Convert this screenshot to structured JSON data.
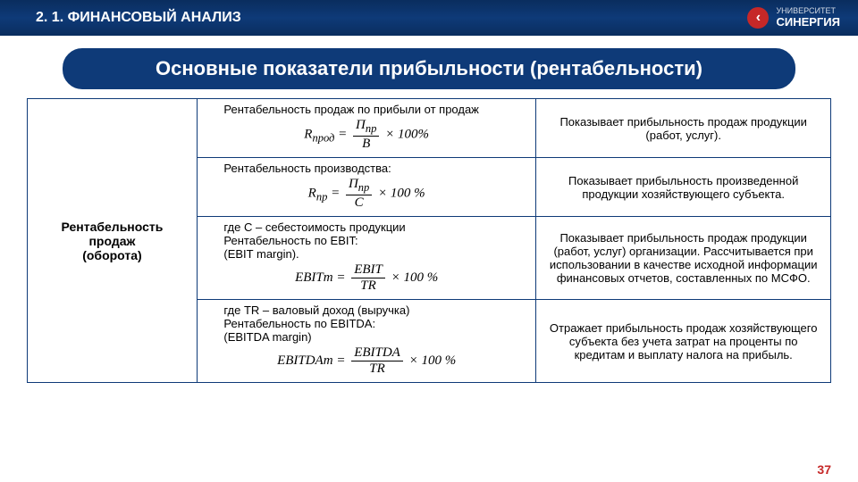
{
  "header": {
    "section": "2. 1. ФИНАНСОВЫЙ АНАЛИЗ",
    "logo_univ": "УНИВЕРСИТЕТ",
    "logo_name": "СИНЕРГИЯ",
    "logo_glyph": "‹"
  },
  "title": "Основные показатели прибыльности (рентабельности)",
  "left_label_1": "Рентабельность продаж",
  "left_label_2": "(оборота)",
  "rows": [
    {
      "mid_text": "Рентабельность продаж по прибыли от продаж",
      "formula_lhs": "R",
      "formula_sub": "прод",
      "formula_num": "П",
      "formula_num_sub": "пр",
      "formula_den": "В",
      "mult": "× 100%",
      "right": "Показывает прибыльность продаж продукции (работ, услуг)."
    },
    {
      "mid_text": "Рентабельность производства:",
      "formula_lhs": "R",
      "formula_sub": "пр",
      "formula_num": "П",
      "formula_num_sub": "пр",
      "formula_den": "C",
      "mult": "× 100 %",
      "right": "Показывает прибыльность произведенной продукции хозяйствующего субъекта."
    },
    {
      "pre_text": "где С – себестоимость продукции",
      "mid_text": "Рентабельность по EBIT:",
      "mid_text2": "(EBIT margin).",
      "formula_lhs": "EBITm",
      "formula_num": "EBIT",
      "formula_den": "TR",
      "mult": "× 100 %",
      "right": "Показывает прибыльность продаж продукции (работ, услуг) организации. Рассчитывается при использовании в качестве исходной информации финансовых отчетов, составленных по МСФО."
    },
    {
      "pre_text": "где TR – валовый доход (выручка)",
      "mid_text": "Рентабельность по EBITDA:",
      "mid_text2": "(EBITDA margin)",
      "formula_lhs": "EBITDAm",
      "formula_num": "EBITDA",
      "formula_den": "TR",
      "mult": "× 100 %",
      "right": "Отражает прибыльность продаж хозяйствующего субъекта без учета затрат на проценты по кредитам и выплату налога на прибыль."
    }
  ],
  "page_number": "37",
  "colors": {
    "primary": "#0e3a78",
    "accent": "#c62828",
    "bg": "#ffffff"
  }
}
